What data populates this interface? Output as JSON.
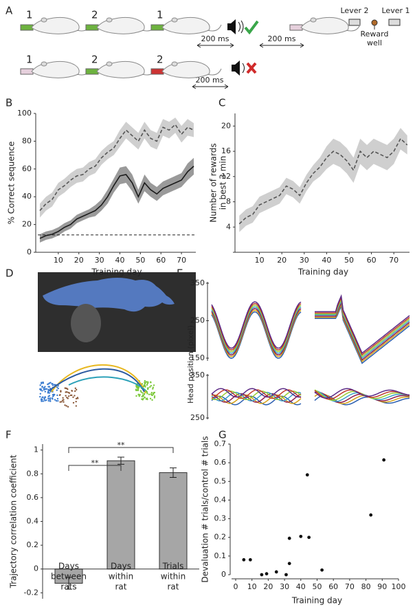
{
  "panel_labels": [
    "A",
    "B",
    "C",
    "D",
    "E",
    "F",
    "G"
  ],
  "panel_a": {
    "row1_levers": [
      "1",
      "2",
      "1"
    ],
    "row1_delays": [
      "200 ms",
      "200 ms"
    ],
    "row2_levers": [
      "1",
      "2",
      "2"
    ],
    "row2_delay": "200 ms",
    "legend": {
      "lever_left": "Lever 2",
      "lever_right": "Lever 1",
      "reward": [
        "Reward",
        "well"
      ]
    }
  },
  "panel_e": {
    "ylabel": "Head position (pixel)",
    "top_yticks": [
      350,
      250,
      150
    ],
    "bottom_yticks": [
      350,
      250
    ]
  },
  "chart_data": [
    {
      "type": "line",
      "ylabel": "% Correct sequence",
      "xlabel": "Training day",
      "x": [
        1,
        4,
        7,
        10,
        13,
        16,
        19,
        22,
        25,
        28,
        31,
        34,
        37,
        40,
        43,
        46,
        49,
        52,
        55,
        58,
        61,
        64,
        67,
        70,
        73,
        76
      ],
      "series": [
        {
          "color": "#555555",
          "band_color": "#cfcfcf",
          "dashed": true,
          "values": [
            30,
            35,
            38,
            45,
            48,
            52,
            55,
            56,
            60,
            62,
            68,
            72,
            75,
            82,
            88,
            84,
            80,
            88,
            82,
            80,
            90,
            88,
            92,
            85,
            90,
            88
          ],
          "lower": [
            25,
            30,
            33,
            40,
            43,
            47,
            50,
            51,
            55,
            57,
            63,
            67,
            70,
            76,
            82,
            78,
            74,
            82,
            76,
            74,
            84,
            82,
            86,
            79,
            84,
            83
          ],
          "upper": [
            35,
            40,
            43,
            50,
            53,
            57,
            60,
            61,
            65,
            67,
            73,
            77,
            80,
            88,
            94,
            90,
            86,
            94,
            88,
            86,
            96,
            94,
            97,
            91,
            96,
            93
          ]
        },
        {
          "color": "#1a1a1a",
          "band_color": "#9a9a9a",
          "dashed": false,
          "values": [
            10,
            12,
            13,
            15,
            18,
            20,
            24,
            26,
            28,
            30,
            34,
            40,
            48,
            55,
            56,
            50,
            40,
            50,
            45,
            42,
            46,
            48,
            50,
            52,
            58,
            62
          ],
          "lower": [
            7,
            9,
            10,
            12,
            15,
            17,
            21,
            23,
            25,
            26,
            30,
            35,
            43,
            49,
            50,
            44,
            35,
            44,
            40,
            37,
            41,
            43,
            45,
            47,
            52,
            56
          ],
          "upper": [
            13,
            15,
            16,
            18,
            21,
            23,
            27,
            29,
            31,
            34,
            38,
            45,
            53,
            61,
            62,
            56,
            45,
            56,
            50,
            47,
            51,
            53,
            55,
            57,
            64,
            68
          ]
        }
      ],
      "hlines": [
        12.5
      ],
      "xlim": [
        0,
        77
      ],
      "xticks": [
        10,
        20,
        30,
        40,
        50,
        60,
        70
      ],
      "ylim": [
        0,
        100
      ],
      "yticks": [
        0,
        20,
        40,
        60,
        80,
        100
      ]
    },
    {
      "type": "line",
      "ylabel": [
        "Number of rewards",
        "in best 3 min"
      ],
      "xlabel": "Training day",
      "x": [
        1,
        4,
        7,
        10,
        13,
        16,
        19,
        22,
        25,
        28,
        31,
        34,
        37,
        40,
        43,
        46,
        49,
        52,
        55,
        58,
        61,
        64,
        67,
        70,
        73,
        76
      ],
      "series": [
        {
          "color": "#555555",
          "band_color": "#cfcfcf",
          "dashed": true,
          "values": [
            4.5,
            5.5,
            6,
            7.5,
            8,
            8.5,
            9,
            10.5,
            10,
            9,
            11,
            12.5,
            13.5,
            15,
            16,
            15.5,
            14.5,
            13,
            16,
            15,
            16,
            15.5,
            15,
            16,
            18,
            17
          ],
          "lower": [
            3.2,
            4.2,
            4.7,
            6.2,
            6.7,
            7.2,
            7.7,
            9.2,
            8.7,
            7.7,
            9.7,
            11.2,
            12,
            13.2,
            14,
            13.5,
            12.5,
            11,
            14,
            13,
            14,
            13.5,
            13,
            14,
            16.3,
            15.5
          ],
          "upper": [
            5.8,
            6.8,
            7.3,
            8.8,
            9.3,
            9.8,
            10.3,
            11.8,
            11.3,
            10.3,
            12.3,
            13.8,
            15,
            16.8,
            18,
            17.5,
            16.5,
            15,
            18,
            17,
            18,
            17.5,
            17,
            18,
            19.7,
            18.5
          ]
        }
      ],
      "xlim": [
        0,
        77
      ],
      "xticks": [
        10,
        20,
        30,
        40,
        50,
        60,
        70
      ],
      "ylim": [
        0,
        22
      ],
      "yticks": [
        4,
        8,
        12,
        16,
        20
      ]
    },
    {
      "type": "bar",
      "ylabel": "Trajectory correlation coefficient",
      "categories": [
        [
          "Days",
          "between",
          "rats"
        ],
        [
          "Days",
          "within",
          "rat"
        ],
        [
          "Trials",
          "within",
          "rat"
        ]
      ],
      "values": [
        -0.12,
        0.91,
        0.81
      ],
      "errors": [
        0.05,
        0.03,
        0.04
      ],
      "color": "#a6a6a6",
      "annotations": [
        "**",
        "**"
      ],
      "ylim": [
        -0.25,
        1.05
      ],
      "yticks": [
        -0.2,
        0,
        0.2,
        0.4,
        0.6,
        0.8,
        1
      ]
    },
    {
      "type": "scatter",
      "ylabel": "Devaluation # trials/control # trials",
      "xlabel": "Training day",
      "x": [
        5,
        9,
        16,
        19,
        25,
        31,
        33,
        33,
        40,
        44,
        45,
        53,
        83,
        91
      ],
      "values": [
        0.08,
        0.08,
        0,
        0.005,
        0.015,
        0,
        0.06,
        0.195,
        0.205,
        0.535,
        0.2,
        0.025,
        0.32,
        0.615
      ],
      "color": "#111111",
      "xlim": [
        0,
        100
      ],
      "xticks": [
        0,
        10,
        20,
        30,
        40,
        50,
        60,
        70,
        80,
        90,
        100
      ],
      "ylim": [
        0,
        0.7
      ],
      "yticks": [
        0,
        0.1,
        0.2,
        0.3,
        0.4,
        0.5,
        0.6,
        0.7
      ]
    }
  ]
}
